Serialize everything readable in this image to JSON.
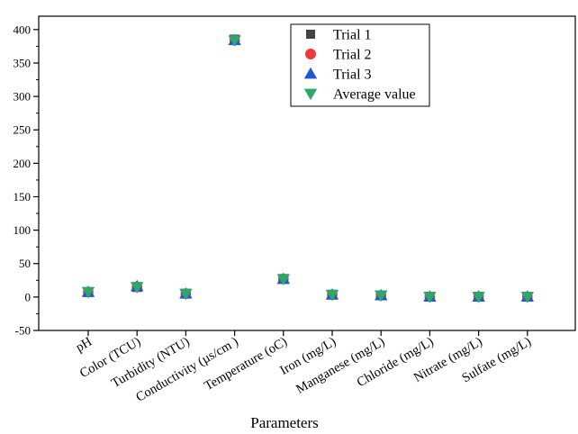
{
  "chart_data": {
    "type": "scatter",
    "title": "",
    "xlabel": "Parameters",
    "ylabel": "",
    "categories": [
      "pH",
      "Color (TCU)",
      "Turbidity (NTU)",
      "Conductivity (µs/cm )",
      "Temperature (oC)",
      "Iron (mg/L)",
      "Manganese (mg/L)",
      "Chloride (mg/L)",
      "Nitrate (mg/L)",
      "Sulfate (mg/L)"
    ],
    "ylim": [
      -50,
      420
    ],
    "yticks": [
      -50,
      0,
      50,
      100,
      150,
      200,
      250,
      300,
      350,
      400
    ],
    "grid": false,
    "legend_position": "top-right",
    "series": [
      {
        "name": "Trial 1",
        "marker": "square",
        "color": "#444444",
        "values": [
          7.5,
          15,
          5,
          385,
          27,
          3.5,
          2.5,
          0.5,
          0.5,
          0.5
        ]
      },
      {
        "name": "Trial 2",
        "marker": "circle",
        "color": "#ee3a3a",
        "values": [
          7.5,
          15,
          5,
          384,
          27,
          3.5,
          2.5,
          0.5,
          0.5,
          0.5
        ]
      },
      {
        "name": "Trial 3",
        "marker": "triangle-up",
        "color": "#2058d8",
        "values": [
          7.5,
          16,
          5,
          384,
          27,
          3.5,
          2.5,
          0.5,
          0.5,
          0.5
        ]
      },
      {
        "name": "Average value",
        "marker": "triangle-down",
        "color": "#2ea868",
        "values": [
          7.5,
          15,
          5,
          384,
          27,
          3.5,
          2.5,
          0.5,
          0.5,
          0.5
        ]
      }
    ]
  }
}
